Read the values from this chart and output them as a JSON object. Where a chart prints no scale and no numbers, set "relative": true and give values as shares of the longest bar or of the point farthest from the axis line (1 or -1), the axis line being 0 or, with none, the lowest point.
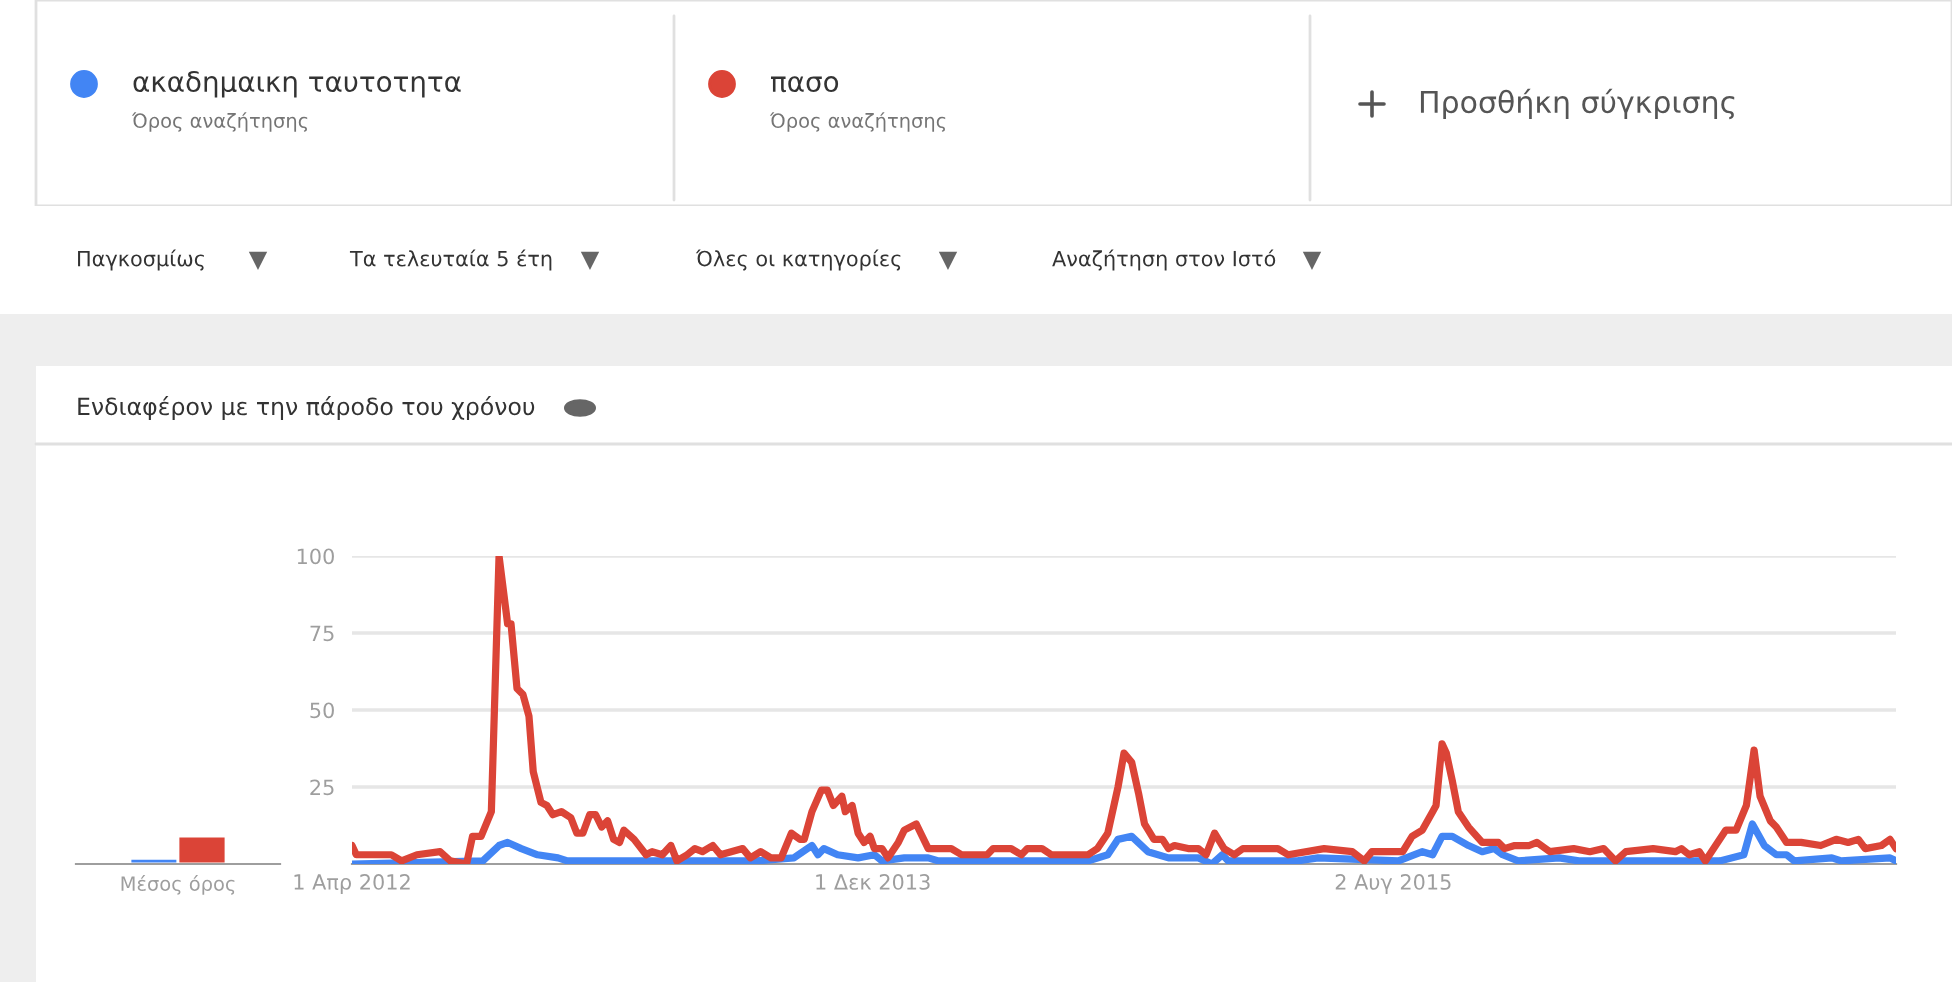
{
  "chart_data": [
    {
      "type": "other",
      "annotations": [
        "Όρος αναζήτησης",
        "Όρος αναζήτησης",
        "Προσθήκη σύγκρισης",
        "Παγκοσμίως",
        "Τα τελευταία 5 έτη",
        "Όλες οι κατηγορίες",
        "Αναζήτηση στον Ιστό"
      ]
    },
    {
      "type": "bar",
      "relative": true,
      "categories": [
        "Μέσος όρος"
      ],
      "series": [
        {
          "color": "#4285f4",
          "values": [
            0.2
          ]
        },
        {
          "color": "#db4437",
          "values": [
            1
          ]
        }
      ]
    },
    {
      "type": "line",
      "title": "Ενδιαφέρον με την πάροδο του χρόνου",
      "legend": "top",
      "grid": "y",
      "marker": "none",
      "line_style": "solid",
      "xlim": [
        "2012-04-01",
        "2017-03-12"
      ],
      "ylim": [
        0,
        100
      ],
      "yticks": [
        25,
        50,
        75,
        100
      ],
      "xticks": [
        {
          "value": "2012-04-01",
          "label": "1 Απρ 2012"
        },
        {
          "value": "2013-12-01",
          "label": "1 Δεκ 2013"
        },
        {
          "value": "2015-08-02",
          "label": "2 Αυγ 2015"
        }
      ],
      "series": [
        {
          "name": "ακαδημαικη ταυτοτητα",
          "color": "#4285f4",
          "x": [
            "2012-04-01",
            "2012-09-01",
            "2012-09-20",
            "2012-09-30",
            "2012-10-16",
            "2012-11-04",
            "2012-11-28",
            "2012-12-09",
            "2013-02-28",
            "2013-07-18",
            "2013-08-31",
            "2013-09-21",
            "2013-09-28",
            "2013-10-05",
            "2013-10-21",
            "2013-11-14",
            "2013-12-03",
            "2013-12-12",
            "2014-01-07",
            "2014-02-04",
            "2014-02-16",
            "2014-08-10",
            "2014-09-02",
            "2014-09-14",
            "2014-09-30",
            "2014-10-19",
            "2014-11-12",
            "2014-12-17",
            "2015-01-02",
            "2015-01-14",
            "2015-01-21",
            "2015-04-12",
            "2015-05-06",
            "2015-08-08",
            "2015-09-05",
            "2015-09-17",
            "2015-09-28",
            "2015-10-10",
            "2015-10-29",
            "2015-11-14",
            "2015-11-28",
            "2015-12-08",
            "2015-12-26",
            "2016-02-12",
            "2016-03-06",
            "2016-08-18",
            "2016-09-15",
            "2016-09-25",
            "2016-10-09",
            "2016-10-23",
            "2016-11-04",
            "2016-11-13",
            "2016-12-27",
            "2017-01-07",
            "2017-03-05",
            "2017-03-12"
          ],
          "values": [
            0,
            1,
            6,
            7,
            5,
            3,
            2,
            1,
            1,
            1,
            2,
            6,
            3,
            5,
            3,
            2,
            3,
            1,
            2,
            2,
            1,
            1,
            3,
            8,
            9,
            4,
            2,
            2,
            0,
            3,
            1,
            1,
            2,
            1,
            4,
            3,
            9,
            9,
            6,
            4,
            5,
            3,
            1,
            2,
            1,
            1,
            3,
            13,
            6,
            3,
            3,
            1,
            2,
            1,
            2,
            1
          ]
        },
        {
          "name": "πασο",
          "color": "#db4437",
          "x": [
            "2012-04-01",
            "2012-04-06",
            "2012-05-17",
            "2012-05-29",
            "2012-06-16",
            "2012-07-13",
            "2012-07-25",
            "2012-08-13",
            "2012-08-20",
            "2012-08-30",
            "2012-09-11",
            "2012-09-20",
            "2012-09-30",
            "2012-10-04",
            "2012-10-11",
            "2012-10-18",
            "2012-10-25",
            "2012-10-30",
            "2012-11-08",
            "2012-11-15",
            "2012-11-22",
            "2012-12-02",
            "2012-12-13",
            "2012-12-20",
            "2012-12-27",
            "2013-01-04",
            "2013-01-11",
            "2013-01-18",
            "2013-01-25",
            "2013-02-01",
            "2013-02-08",
            "2013-02-13",
            "2013-02-25",
            "2013-03-11",
            "2013-03-18",
            "2013-03-30",
            "2013-04-09",
            "2013-04-16",
            "2013-04-28",
            "2013-05-07",
            "2013-05-16",
            "2013-05-28",
            "2013-06-06",
            "2013-07-02",
            "2013-07-11",
            "2013-07-23",
            "2013-08-04",
            "2013-08-16",
            "2013-08-28",
            "2013-09-07",
            "2013-09-12",
            "2013-09-21",
            "2013-10-02",
            "2013-10-09",
            "2013-10-16",
            "2013-10-26",
            "2013-10-30",
            "2013-11-07",
            "2013-11-14",
            "2013-11-21",
            "2013-11-28",
            "2013-12-03",
            "2013-12-12",
            "2013-12-19",
            "2013-12-31",
            "2014-01-07",
            "2014-01-21",
            "2014-02-04",
            "2014-03-03",
            "2014-03-15",
            "2014-04-14",
            "2014-04-21",
            "2014-05-12",
            "2014-05-24",
            "2014-05-31",
            "2014-06-17",
            "2014-06-28",
            "2014-08-10",
            "2014-08-21",
            "2014-09-02",
            "2014-09-14",
            "2014-09-21",
            "2014-09-30",
            "2014-10-08",
            "2014-10-15",
            "2014-10-26",
            "2014-11-05",
            "2014-11-12",
            "2014-11-19",
            "2014-12-05",
            "2014-12-17",
            "2014-12-26",
            "2015-01-05",
            "2015-01-16",
            "2015-01-28",
            "2015-02-07",
            "2015-03-20",
            "2015-04-01",
            "2015-05-13",
            "2015-06-15",
            "2015-06-29",
            "2015-07-08",
            "2015-07-22",
            "2015-08-13",
            "2015-08-24",
            "2015-09-05",
            "2015-09-17",
            "2015-09-21",
            "2015-09-28",
            "2015-10-03",
            "2015-10-10",
            "2015-10-17",
            "2015-10-29",
            "2015-11-14",
            "2015-12-03",
            "2015-12-10",
            "2015-12-22",
            "2016-01-08",
            "2016-01-17",
            "2016-02-01",
            "2016-02-29",
            "2016-03-19",
            "2016-04-04",
            "2016-04-18",
            "2016-04-30",
            "2016-06-01",
            "2016-06-27",
            "2016-07-04",
            "2016-07-13",
            "2016-07-25",
            "2016-08-01",
            "2016-08-13",
            "2016-08-25",
            "2016-09-06",
            "2016-09-18",
            "2016-09-27",
            "2016-10-04",
            "2016-10-16",
            "2016-10-23",
            "2016-11-04",
            "2016-11-21",
            "2016-12-14",
            "2017-01-01",
            "2017-01-15",
            "2017-01-27",
            "2017-02-04",
            "2017-02-23",
            "2017-03-05",
            "2017-03-12"
          ],
          "values": [
            6,
            3,
            3,
            1,
            3,
            4,
            1,
            0,
            9,
            9,
            17,
            100,
            78,
            78,
            57,
            55,
            48,
            30,
            20,
            19,
            16,
            17,
            15,
            10,
            10,
            16,
            16,
            12,
            14,
            8,
            7,
            11,
            8,
            3,
            4,
            3,
            6,
            1,
            3,
            5,
            4,
            6,
            3,
            5,
            2,
            4,
            2,
            2,
            10,
            8,
            8,
            17,
            24,
            24,
            19,
            22,
            17,
            19,
            10,
            7,
            9,
            5,
            5,
            2,
            7,
            11,
            13,
            5,
            5,
            3,
            3,
            5,
            5,
            3,
            5,
            5,
            3,
            3,
            5,
            10,
            25,
            36,
            33,
            23,
            13,
            8,
            8,
            5,
            6,
            5,
            5,
            3,
            10,
            5,
            3,
            5,
            5,
            3,
            5,
            4,
            1,
            4,
            4,
            4,
            9,
            11,
            17,
            19,
            39,
            36,
            27,
            17,
            12,
            7,
            7,
            5,
            6,
            6,
            7,
            4,
            5,
            4,
            5,
            1,
            4,
            5,
            4,
            5,
            3,
            4,
            1,
            6,
            11,
            11,
            19,
            37,
            22,
            14,
            12,
            7,
            7,
            6,
            8,
            7,
            8,
            5,
            6,
            8,
            5
          ]
        }
      ]
    }
  ]
}
